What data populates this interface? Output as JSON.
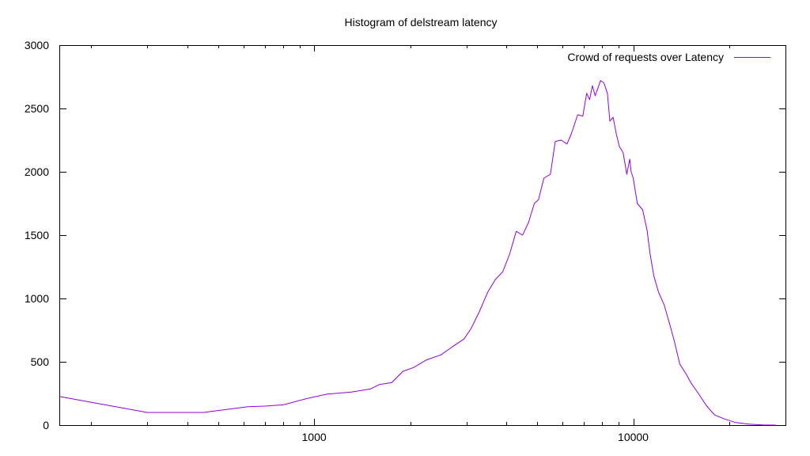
{
  "chart_data": {
    "type": "line",
    "title": "Histogram of delstream latency",
    "xlabel": "",
    "ylabel": "",
    "xscale": "log",
    "xlim": [
      160,
      30000
    ],
    "ylim": [
      0,
      3000
    ],
    "x_ticks": [
      1000,
      10000
    ],
    "x_tick_labels": [
      "1000",
      "10000"
    ],
    "y_ticks": [
      0,
      500,
      1000,
      1500,
      2000,
      2500,
      3000
    ],
    "y_tick_labels": [
      "0",
      "500",
      "1000",
      "1500",
      "2000",
      "2500",
      "3000"
    ],
    "grid": false,
    "legend_position": "top-right",
    "series": [
      {
        "name": "Crowd of requests over Latency",
        "color": "#9400d3",
        "x": [
          160,
          300,
          450,
          620,
          700,
          800,
          950,
          1100,
          1300,
          1500,
          1600,
          1750,
          1900,
          2050,
          2250,
          2500,
          2700,
          2950,
          3100,
          3300,
          3500,
          3700,
          3900,
          4100,
          4300,
          4500,
          4700,
          4900,
          5050,
          5250,
          5500,
          5700,
          5950,
          6200,
          6400,
          6700,
          6950,
          7150,
          7300,
          7450,
          7600,
          7750,
          7900,
          8100,
          8300,
          8450,
          8650,
          8850,
          9050,
          9300,
          9550,
          9750,
          9850,
          10000,
          10300,
          10700,
          11050,
          11300,
          11600,
          12000,
          12500,
          13000,
          13400,
          14000,
          14600,
          15200,
          16000,
          17000,
          18000,
          19500,
          21000,
          23000,
          25500,
          28000
        ],
        "values": [
          225,
          100,
          100,
          145,
          150,
          160,
          210,
          245,
          260,
          285,
          320,
          335,
          425,
          455,
          515,
          555,
          615,
          680,
          760,
          900,
          1050,
          1150,
          1210,
          1350,
          1530,
          1500,
          1600,
          1750,
          1780,
          1950,
          1980,
          2240,
          2250,
          2220,
          2300,
          2450,
          2440,
          2620,
          2570,
          2680,
          2600,
          2660,
          2720,
          2700,
          2620,
          2400,
          2430,
          2300,
          2200,
          2150,
          1980,
          2100,
          2000,
          1950,
          1750,
          1700,
          1540,
          1350,
          1180,
          1050,
          950,
          800,
          680,
          480,
          410,
          330,
          250,
          150,
          80,
          45,
          20,
          8,
          2,
          0
        ]
      }
    ]
  }
}
